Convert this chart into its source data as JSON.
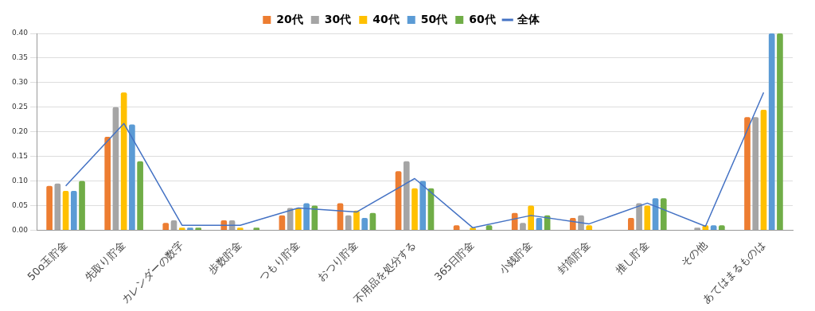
{
  "chart_data": {
    "type": "bar",
    "categories": [
      "50o玉貯金",
      "先取り貯金",
      "カレンダーの数字",
      "歩数貯金",
      "つもり貯金",
      "おつり貯金",
      "不用品を処分する",
      "365日貯金",
      "小銭貯金",
      "封筒貯金",
      "推し貯金",
      "その他",
      "あてはまるものは"
    ],
    "series": [
      {
        "name": "20代",
        "color": "#ed7d31",
        "values": [
          0.09,
          0.19,
          0.015,
          0.02,
          0.03,
          0.055,
          0.12,
          0.01,
          0.035,
          0.025,
          0.025,
          0,
          0.23
        ]
      },
      {
        "name": "30代",
        "color": "#a5a5a5",
        "values": [
          0.095,
          0.25,
          0.02,
          0.02,
          0.045,
          0.03,
          0.14,
          0,
          0.015,
          0.03,
          0.055,
          0.005,
          0.23
        ]
      },
      {
        "name": "40代",
        "color": "#ffc000",
        "values": [
          0.08,
          0.28,
          0.005,
          0.005,
          0.045,
          0.04,
          0.085,
          0.005,
          0.05,
          0.01,
          0.05,
          0.01,
          0.245
        ]
      },
      {
        "name": "50代",
        "color": "#5b9bd5",
        "values": [
          0.08,
          0.215,
          0.005,
          0,
          0.055,
          0.025,
          0.1,
          0,
          0.025,
          0,
          0.065,
          0.01,
          0.4
        ]
      },
      {
        "name": "60代",
        "color": "#70ad47",
        "values": [
          0.1,
          0.14,
          0.005,
          0.005,
          0.05,
          0.035,
          0.085,
          0.01,
          0.03,
          0,
          0.065,
          0.01,
          0.4
        ]
      },
      {
        "name": "全体",
        "type": "line",
        "color": "#4472c4",
        "marker": "none",
        "values": [
          0.09,
          0.217,
          0.01,
          0.01,
          0.045,
          0.037,
          0.105,
          0.005,
          0.03,
          0.013,
          0.055,
          0.008,
          0.28
        ]
      }
    ],
    "ylim": [
      0,
      0.4
    ],
    "yticks": [
      {
        "value": 0,
        "label": "0.00"
      },
      {
        "value": 0.05,
        "label": "0.05"
      },
      {
        "value": 0.1,
        "label": "0.10"
      },
      {
        "value": 0.15,
        "label": "0.15"
      },
      {
        "value": 0.2,
        "label": "0.20"
      },
      {
        "value": 0.25,
        "label": "0.25"
      },
      {
        "value": 0.3,
        "label": "0.30"
      },
      {
        "value": 0.35,
        "label": "0.35"
      },
      {
        "value": 0.4,
        "label": "0.40"
      }
    ],
    "grid": "y",
    "legend": "top"
  }
}
